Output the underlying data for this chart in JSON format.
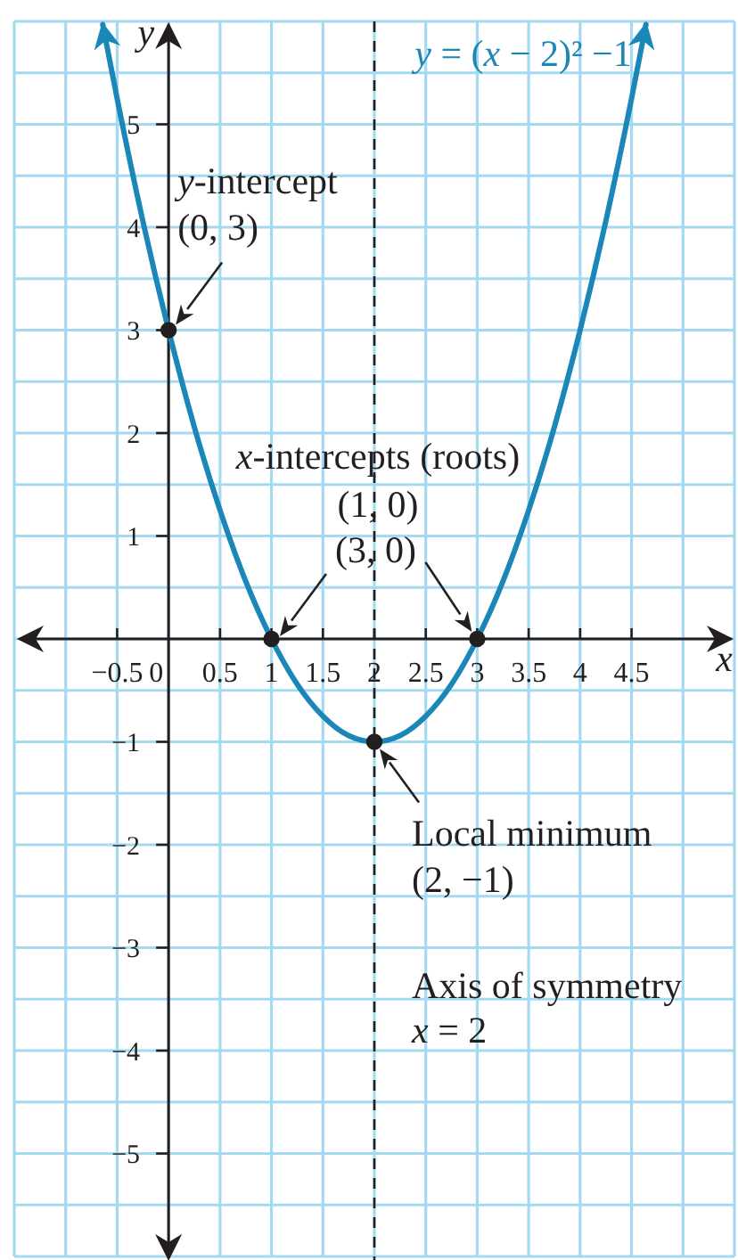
{
  "chart_data": {
    "type": "line",
    "xlabel": "x",
    "ylabel": "y",
    "xlim": [
      -1.5,
      5.5
    ],
    "ylim": [
      -6,
      6
    ],
    "xticks": [
      -0.5,
      0,
      0.5,
      1,
      1.5,
      2,
      2.5,
      3,
      3.5,
      4,
      4.5
    ],
    "yticks": [
      -5,
      -4,
      -3,
      -2,
      -1,
      1,
      2,
      3,
      4,
      5
    ],
    "grid": true,
    "series": [
      {
        "name": "y = (x − 2)² −1",
        "color": "#1b87b8",
        "x": [
          -0.64,
          -0.5,
          -0.25,
          0,
          0.25,
          0.5,
          0.75,
          1,
          1.25,
          1.5,
          1.75,
          2,
          2.25,
          2.5,
          2.75,
          3,
          3.25,
          3.5,
          3.75,
          4,
          4.25,
          4.5,
          4.64
        ],
        "values": [
          5.97,
          5.25,
          4.06,
          3,
          2.06,
          1.25,
          0.56,
          0,
          -0.44,
          -0.75,
          -0.94,
          -1,
          -0.94,
          -0.75,
          -0.44,
          0,
          0.56,
          1.25,
          2.06,
          3,
          4.06,
          5.25,
          5.97
        ]
      },
      {
        "type": "scatter",
        "color": "#231f20",
        "marker": "circle",
        "x": [
          0,
          1,
          3,
          2
        ],
        "values": [
          3,
          0,
          0,
          -1
        ]
      }
    ],
    "ref_lines": [
      {
        "axis": "x",
        "value": 2,
        "label": "Axis of symmetry\nx = 2",
        "line_style": "dashed",
        "color": "#231f20"
      }
    ],
    "annotations": [
      {
        "text": "y-intercept\n(0, 3)",
        "x": 0,
        "y": 3
      },
      "x-intercepts (roots)",
      "(1, 0)",
      {
        "text": "(3, 0)",
        "x": 3,
        "y": 0
      },
      {
        "text": "Local minimum\n(2, −1)",
        "x": 2,
        "y": -1
      }
    ]
  }
}
